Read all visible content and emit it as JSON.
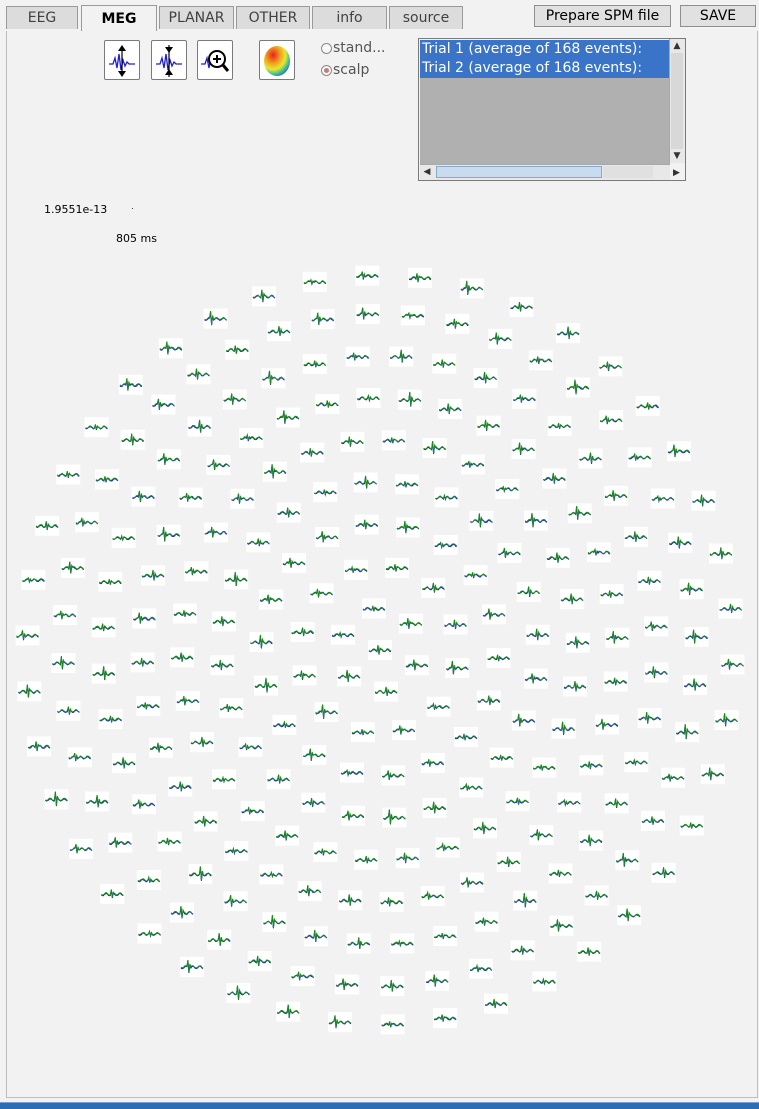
{
  "tabs": [
    {
      "label": "EEG",
      "active": false
    },
    {
      "label": "MEG",
      "active": true
    },
    {
      "label": "PLANAR",
      "active": false
    },
    {
      "label": "OTHER",
      "active": false
    },
    {
      "label": "info",
      "active": false
    },
    {
      "label": "source",
      "active": false
    }
  ],
  "toolbar": {
    "prepare_label": "Prepare SPM file",
    "save_label": "SAVE",
    "icons": [
      "scale-up-icon",
      "scale-down-icon",
      "zoom-in-icon",
      "topography-icon"
    ]
  },
  "layout_mode": {
    "options": [
      {
        "label": "stand...",
        "selected": false
      },
      {
        "label": "scalp",
        "selected": true
      }
    ]
  },
  "trials": {
    "items": [
      {
        "label": "Trial 1 (average of 168 events):",
        "selected": true
      },
      {
        "label": "Trial 2 (average of 168 events):",
        "selected": true
      }
    ]
  },
  "scale": {
    "amplitude": "1.9551e-13",
    "time": "805 ms"
  },
  "colors": {
    "trial1": "#1a1adc",
    "trial2": "#1a8a1a",
    "selection": "#3a74c8"
  }
}
